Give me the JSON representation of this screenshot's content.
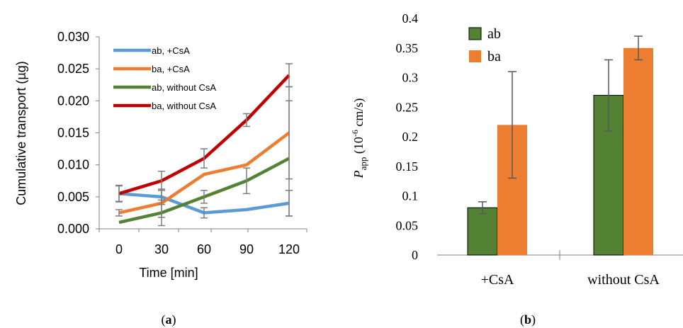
{
  "chart_data": [
    {
      "panel_label": "a",
      "type": "line",
      "xlabel": "Time [min]",
      "ylabel": "Cumulative transport (µg)",
      "x": [
        0,
        30,
        60,
        90,
        120
      ],
      "xlim": [
        0,
        120
      ],
      "ylim": [
        0,
        0.03
      ],
      "yticks": [
        "0.000",
        "0.005",
        "0.010",
        "0.015",
        "0.020",
        "0.025",
        "0.030"
      ],
      "xticks": [
        "0",
        "30",
        "60",
        "90",
        "120"
      ],
      "legend_position": "top-left",
      "series": [
        {
          "name": "ab, +CsA",
          "color": "#5b9bd5",
          "values": [
            0.0055,
            0.005,
            0.0025,
            0.003,
            0.004
          ],
          "errors": [
            0.0012,
            0.0012,
            0.0008,
            0.0,
            0.002
          ]
        },
        {
          "name": "ba, +CsA",
          "color": "#ed7d31",
          "values": [
            0.0025,
            0.004,
            0.0085,
            0.01,
            0.015
          ],
          "errors": [
            0.0005,
            0.0022,
            0.0,
            0.0,
            0.0072
          ]
        },
        {
          "name": "ab, without CsA",
          "color": "#548235",
          "values": [
            0.001,
            0.0025,
            0.005,
            0.0075,
            0.011
          ],
          "errors": [
            0.0,
            0.002,
            0.001,
            0.002,
            0.009
          ]
        },
        {
          "name": "ba, without CsA",
          "color": "#c00000",
          "values": [
            0.0055,
            0.0075,
            0.011,
            0.017,
            0.024
          ],
          "errors": [
            0.0013,
            0.0015,
            0.0015,
            0.001,
            0.0018
          ]
        }
      ]
    },
    {
      "panel_label": "b",
      "type": "bar",
      "ylabel_main": "P",
      "ylabel_sub": "app",
      "ylabel_rest": " (10",
      "ylabel_sup": "-6",
      "ylabel_unit": " cm/s)",
      "categories": [
        "+CsA",
        "without CsA"
      ],
      "ylim": [
        0,
        0.4
      ],
      "yticks": [
        "0",
        "0.05",
        "0.1",
        "0.15",
        "0.2",
        "0.25",
        "0.3",
        "0.35",
        "0.4"
      ],
      "legend_position": "top-left",
      "series": [
        {
          "name": "ab",
          "color": "#548235",
          "values": [
            0.08,
            0.27
          ],
          "errors": [
            0.01,
            0.06
          ]
        },
        {
          "name": "ba",
          "color": "#ed7d31",
          "values": [
            0.22,
            0.35
          ],
          "errors": [
            0.09,
            0.02
          ]
        }
      ]
    }
  ]
}
